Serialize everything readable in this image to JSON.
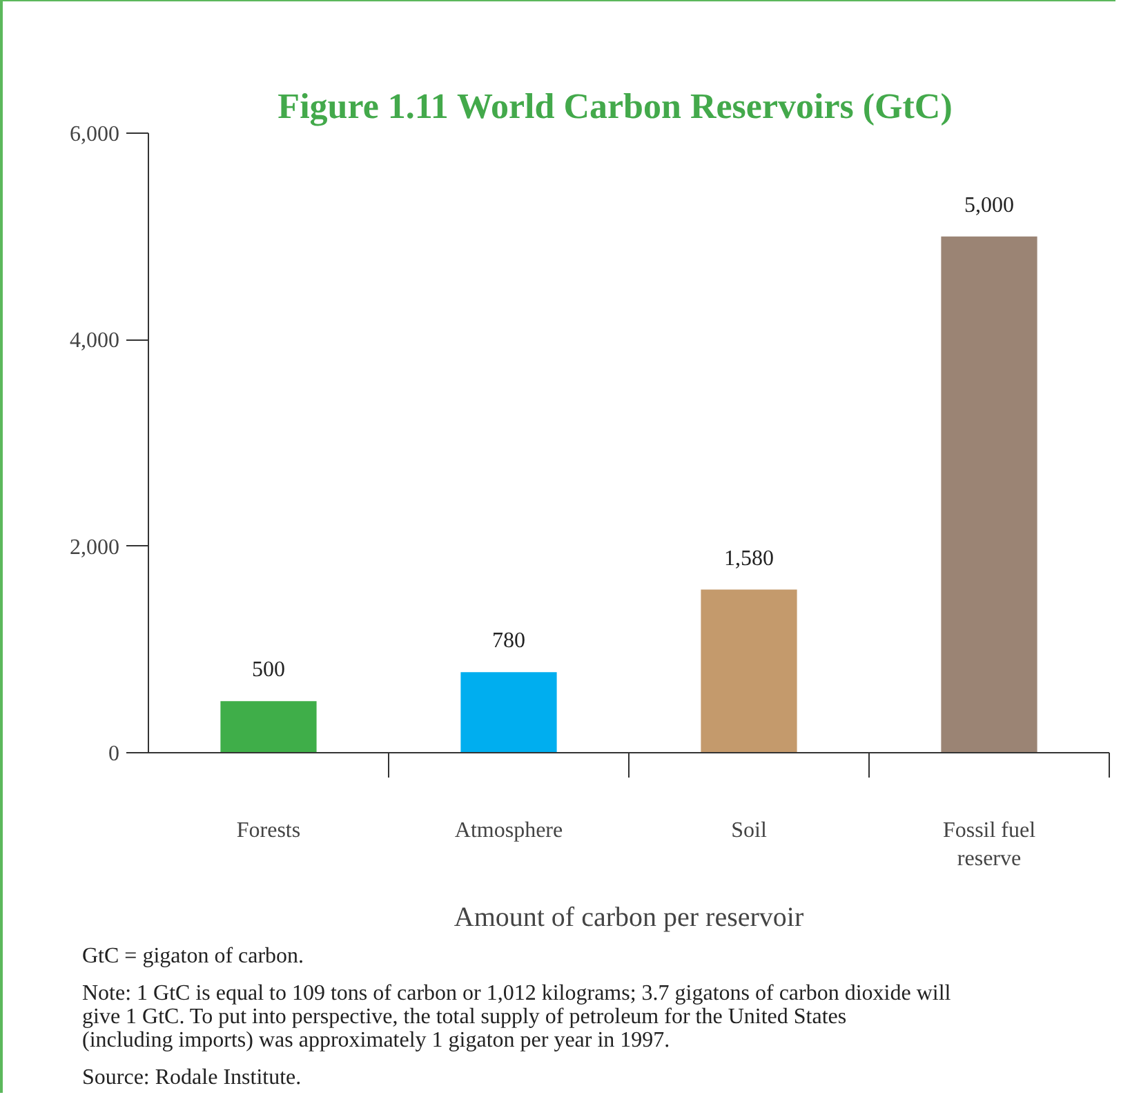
{
  "chart_data": {
    "type": "bar",
    "title": "Figure 1.11    World Carbon Reservoirs (GtC)",
    "xlabel": "Amount of carbon per reservoir",
    "categories": [
      "Forests",
      "Atmosphere",
      "Soil",
      "Fossil fuel reserve"
    ],
    "values": [
      500,
      780,
      1580,
      5000
    ],
    "colors": [
      "#3fae49",
      "#00aeef",
      "#c49a6c",
      "#9b8474"
    ],
    "ylim": [
      0,
      6000
    ],
    "yticks": [
      0,
      {
        "value": 2000,
        "label": "2,000"
      },
      {
        "value": 4000,
        "label": "4,000"
      },
      {
        "value": 6000,
        "label": "6,000"
      }
    ],
    "value_labels": [
      "500",
      "780",
      "1,580",
      "5,000"
    ],
    "grid": false,
    "annotations": [
      "GtC = gigaton of carbon.",
      "Note: 1 GtC is equal to 109 tons of carbon or 1,012 kilograms; 3.7 gigatons of carbon dioxide will give 1 GtC. To put into perspective, the total supply of petroleum for the United States (including imports) was approximately 1 gigaton per year in 1997.",
      "Source: Rodale Institute."
    ]
  }
}
